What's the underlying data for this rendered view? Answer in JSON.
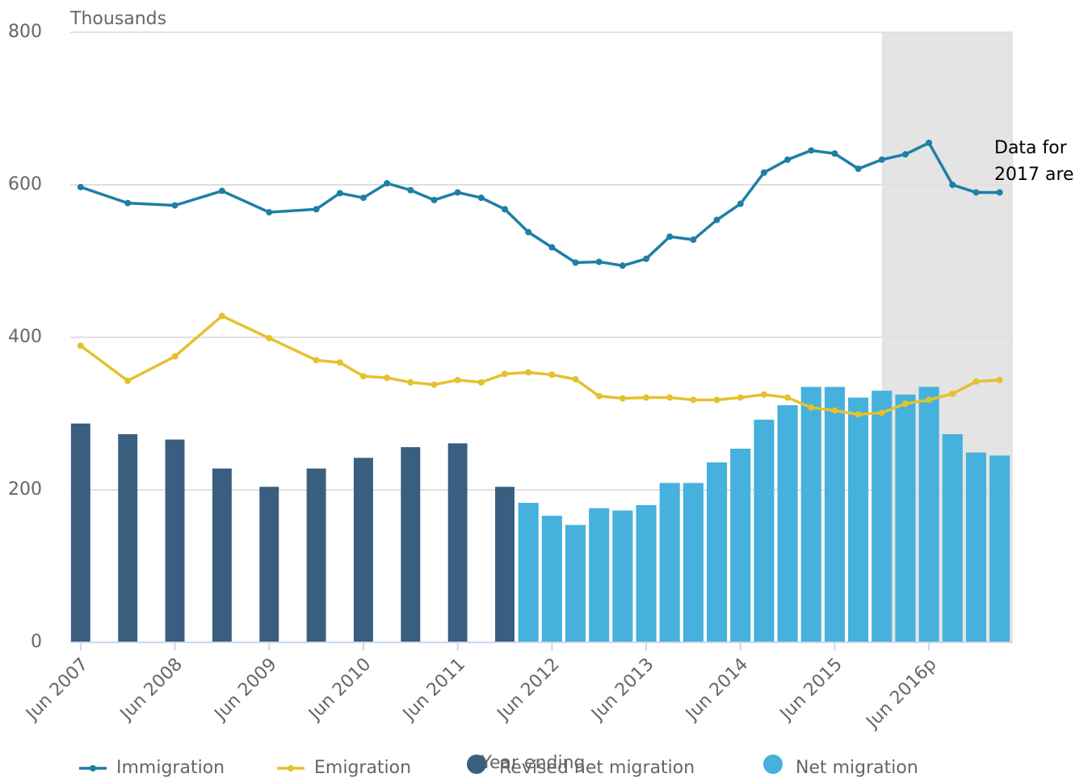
{
  "chart_data": {
    "type": "combo",
    "y_axis_title": "Thousands",
    "x_axis_title": "Year ending",
    "annotation": [
      "Data for",
      "2017 are"
    ],
    "shaded_from": 2016.0,
    "xlim": [
      2007.39,
      2017.39
    ],
    "xticks": [
      {
        "value": 2007.5,
        "label": "Jun 2007"
      },
      {
        "value": 2008.5,
        "label": "Jun 2008"
      },
      {
        "value": 2009.5,
        "label": "Jun 2009"
      },
      {
        "value": 2010.5,
        "label": "Jun 2010"
      },
      {
        "value": 2011.5,
        "label": "Jun 2011"
      },
      {
        "value": 2012.5,
        "label": "Jun 2012"
      },
      {
        "value": 2013.5,
        "label": "Jun 2013"
      },
      {
        "value": 2014.5,
        "label": "Jun 2014"
      },
      {
        "value": 2015.5,
        "label": "Jun 2015"
      },
      {
        "value": 2016.5,
        "label": "Jun 2016p"
      }
    ],
    "ylim": [
      0,
      800
    ],
    "yticks": [
      0,
      200,
      400,
      600,
      800
    ],
    "grid": true,
    "legend": "bottom",
    "series": [
      {
        "name": "Immigration",
        "type": "line",
        "color": "#1e7fa6",
        "x": [
          2007.5,
          2008.0,
          2008.5,
          2009.0,
          2009.5,
          2010.0,
          2010.25,
          2010.5,
          2010.75,
          2011.0,
          2011.25,
          2011.5,
          2011.75,
          2012.0,
          2012.25,
          2012.5,
          2012.75,
          2013.0,
          2013.25,
          2013.5,
          2013.75,
          2014.0,
          2014.25,
          2014.5,
          2014.75,
          2015.0,
          2015.25,
          2015.5,
          2015.75,
          2016.0,
          2016.25,
          2016.5,
          2016.75,
          2017.0,
          2017.25
        ],
        "values": [
          597,
          576,
          573,
          592,
          564,
          568,
          589,
          583,
          602,
          593,
          580,
          590,
          583,
          568,
          538,
          518,
          498,
          499,
          494,
          503,
          532,
          528,
          554,
          575,
          616,
          633,
          645,
          641,
          621,
          633,
          640,
          655,
          600,
          590,
          590
        ]
      },
      {
        "name": "Emigration",
        "type": "line",
        "color": "#e5c12c",
        "x": [
          2007.5,
          2008.0,
          2008.5,
          2009.0,
          2009.5,
          2010.0,
          2010.25,
          2010.5,
          2010.75,
          2011.0,
          2011.25,
          2011.5,
          2011.75,
          2012.0,
          2012.25,
          2012.5,
          2012.75,
          2013.0,
          2013.25,
          2013.5,
          2013.75,
          2014.0,
          2014.25,
          2014.5,
          2014.75,
          2015.0,
          2015.25,
          2015.5,
          2015.75,
          2016.0,
          2016.25,
          2016.5,
          2016.75,
          2017.0,
          2017.25
        ],
        "values": [
          389,
          343,
          375,
          428,
          399,
          370,
          367,
          349,
          347,
          341,
          338,
          344,
          341,
          352,
          354,
          351,
          345,
          323,
          320,
          321,
          321,
          318,
          318,
          321,
          325,
          321,
          308,
          304,
          299,
          301,
          313,
          318,
          326,
          342,
          344
        ]
      },
      {
        "name": "Revised net migration",
        "type": "bar",
        "color": "#3a5e7f",
        "x": [
          2007.5,
          2008.0,
          2008.5,
          2009.0,
          2009.5,
          2010.0,
          2010.5,
          2011.0,
          2011.5,
          2012.0
        ],
        "values": [
          287,
          273,
          266,
          228,
          204,
          228,
          242,
          256,
          261,
          204
        ]
      },
      {
        "name": "Net migration",
        "type": "bar",
        "color": "#45b1dc",
        "x": [
          2012.25,
          2012.5,
          2012.75,
          2013.0,
          2013.25,
          2013.5,
          2013.75,
          2014.0,
          2014.25,
          2014.5,
          2014.75,
          2015.0,
          2015.25,
          2015.5,
          2015.75,
          2016.0,
          2016.25,
          2016.5,
          2016.75,
          2017.0,
          2017.25
        ],
        "values": [
          183,
          166,
          154,
          176,
          173,
          180,
          209,
          209,
          236,
          254,
          292,
          311,
          335,
          335,
          321,
          330,
          325,
          335,
          273,
          249,
          245
        ]
      }
    ]
  }
}
